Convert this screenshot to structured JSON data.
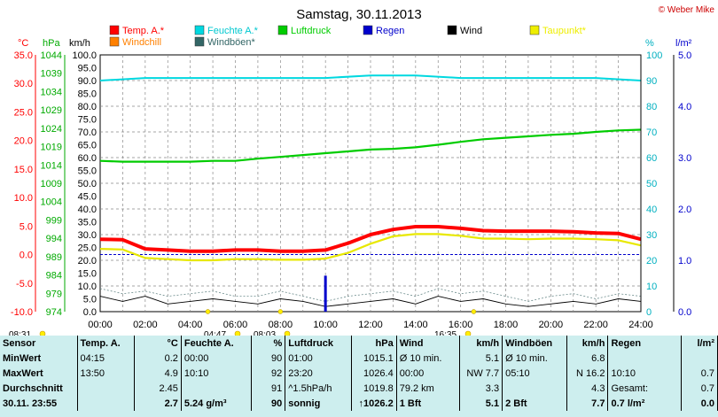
{
  "title": "Samstag, 30.11.2013",
  "copyright": "© Weber Mike",
  "colors": {
    "temp": "#ff0000",
    "humidity": "#00d8e0",
    "pressure": "#00cc00",
    "rain": "#0000cc",
    "wind": "#000000",
    "dewpoint": "#eeee00",
    "windchill": "#ff8000",
    "gusts": "#336666",
    "grid": "#888888",
    "stats_bg": "#cdeeee"
  },
  "legend": [
    {
      "label": "Temp. A.*",
      "color": "#ff0000"
    },
    {
      "label": "Feuchte A.*",
      "color": "#00d8e0"
    },
    {
      "label": "Luftdruck",
      "color": "#00cc00"
    },
    {
      "label": "Regen",
      "color": "#0000cc"
    },
    {
      "label": "Wind",
      "color": "#000000"
    },
    {
      "label": "Taupunkt*",
      "color": "#eeee00"
    },
    {
      "label": "Windchill",
      "color": "#ff8000"
    },
    {
      "label": "Windböen*",
      "color": "#336666"
    }
  ],
  "axis_units": {
    "temp": "°C",
    "pressure": "hPa",
    "wind": "km/h",
    "humidity": "%",
    "rain": "l/m²"
  },
  "chart_data": {
    "type": "line",
    "x_ticks": [
      "00:00",
      "02:00",
      "04:00",
      "06:00",
      "08:00",
      "10:00",
      "12:00",
      "14:00",
      "16:00",
      "18:00",
      "20:00",
      "22:00",
      "24:00"
    ],
    "temp_ticks": [
      "35.0",
      "30.0",
      "25.0",
      "20.0",
      "15.0",
      "10.0",
      "5.0",
      "0.0",
      "-5.0",
      "-10.0"
    ],
    "pressure_ticks": [
      "1044",
      "1039",
      "1034",
      "1029",
      "1024",
      "1019",
      "1014",
      "1009",
      "1004",
      "999",
      "994",
      "989",
      "984",
      "979",
      "974"
    ],
    "wind_ticks": [
      "100.0",
      "95.0",
      "90.0",
      "85.0",
      "80.0",
      "75.0",
      "70.0",
      "65.0",
      "60.0",
      "55.0",
      "50.0",
      "45.0",
      "40.0",
      "35.0",
      "30.0",
      "25.0",
      "20.0",
      "15.0",
      "10.0",
      "5.0",
      "0.0"
    ],
    "humidity_ticks": [
      "100",
      "90",
      "80",
      "70",
      "60",
      "50",
      "40",
      "30",
      "20",
      "10",
      "0"
    ],
    "rain_ticks": [
      "5.0",
      "4.0",
      "3.0",
      "2.0",
      "1.0",
      "0.0"
    ],
    "ylim_temp": [
      -10,
      35
    ],
    "ylim_pressure": [
      974,
      1044
    ],
    "ylim_wind": [
      0,
      100
    ],
    "ylim_humidity": [
      0,
      100
    ],
    "ylim_rain": [
      0,
      5
    ],
    "x_range_hours": [
      0,
      24
    ],
    "series": [
      {
        "name": "Temp. A.*",
        "axis": "temp",
        "x": [
          0,
          1,
          2,
          3,
          4,
          5,
          6,
          7,
          8,
          9,
          10,
          11,
          12,
          13,
          14,
          15,
          16,
          17,
          18,
          19,
          20,
          21,
          22,
          23,
          24
        ],
        "values": [
          2.7,
          2.6,
          1.0,
          0.8,
          0.6,
          0.6,
          0.8,
          0.8,
          0.6,
          0.6,
          0.8,
          2.0,
          3.5,
          4.4,
          4.9,
          4.9,
          4.6,
          4.2,
          4.1,
          4.1,
          4.1,
          4.0,
          3.8,
          3.7,
          2.7
        ]
      },
      {
        "name": "Taupunkt*",
        "axis": "temp",
        "x": [
          0,
          1,
          2,
          3,
          4,
          5,
          6,
          7,
          8,
          9,
          10,
          11,
          12,
          13,
          14,
          15,
          16,
          17,
          18,
          19,
          20,
          21,
          22,
          23,
          24
        ],
        "values": [
          1.0,
          0.9,
          -0.6,
          -0.8,
          -1.0,
          -1.0,
          -0.8,
          -0.8,
          -0.9,
          -0.9,
          -0.7,
          0.3,
          1.9,
          3.2,
          3.6,
          3.6,
          3.3,
          2.8,
          2.8,
          2.7,
          2.8,
          2.8,
          2.7,
          2.5,
          1.6
        ]
      },
      {
        "name": "Luftdruck",
        "axis": "pressure",
        "x": [
          0,
          1,
          2,
          3,
          4,
          5,
          6,
          7,
          8,
          9,
          10,
          11,
          12,
          13,
          14,
          15,
          16,
          17,
          18,
          19,
          20,
          21,
          22,
          23,
          24
        ],
        "values": [
          1015.1,
          1014.9,
          1014.9,
          1014.9,
          1014.9,
          1015.1,
          1015.1,
          1015.7,
          1016.2,
          1016.7,
          1017.2,
          1017.7,
          1018.2,
          1018.4,
          1018.8,
          1019.5,
          1020.3,
          1021.0,
          1021.4,
          1021.8,
          1022.2,
          1022.5,
          1023.0,
          1023.4,
          1023.6
        ]
      },
      {
        "name": "Feuchte A.*",
        "axis": "humidity",
        "x": [
          0,
          2,
          4,
          6,
          8,
          10,
          12,
          14,
          16,
          18,
          20,
          22,
          24
        ],
        "values": [
          90,
          91,
          91,
          91,
          91,
          91,
          92,
          92,
          91,
          91,
          91,
          91,
          90
        ]
      },
      {
        "name": "Wind",
        "axis": "wind",
        "x": [
          0,
          1,
          2,
          3,
          4,
          5,
          6,
          7,
          8,
          9,
          10,
          11,
          12,
          13,
          14,
          15,
          16,
          17,
          18,
          19,
          20,
          21,
          22,
          23,
          24
        ],
        "values": [
          6,
          4,
          6,
          3,
          4,
          5,
          4,
          3,
          5,
          4,
          2,
          3,
          4,
          5,
          3,
          6,
          4,
          5,
          3,
          2,
          3,
          4,
          3,
          5,
          4
        ]
      },
      {
        "name": "Windböen*",
        "axis": "wind",
        "x": [
          0,
          1,
          2,
          3,
          4,
          5,
          6,
          7,
          8,
          9,
          10,
          11,
          12,
          13,
          14,
          15,
          16,
          17,
          18,
          19,
          20,
          21,
          22,
          23,
          24
        ],
        "values": [
          9,
          7,
          8,
          6,
          7,
          8,
          6,
          6,
          8,
          6,
          4,
          6,
          7,
          8,
          6,
          9,
          7,
          8,
          6,
          4,
          6,
          7,
          5,
          7,
          6
        ]
      },
      {
        "name": "Regen",
        "axis": "rain",
        "type": "bar",
        "x": [
          10.0
        ],
        "values": [
          0.7
        ]
      }
    ],
    "freezing_line_temp": 0.0,
    "markers_below": [
      {
        "label": "08:31",
        "icon": "sunrise-icon"
      },
      {
        "label": "04:47",
        "icon": "moon-icon"
      },
      {
        "label": "08:03",
        "icon": "sun-icon"
      },
      {
        "label": "16:35",
        "icon": "moon-icon"
      }
    ]
  },
  "stats": {
    "header": [
      "Sensor",
      "Temp. A.",
      "°C",
      "Feuchte A.",
      "%",
      "Luftdruck",
      "hPa",
      "Wind",
      "km/h",
      "Windböen",
      "km/h",
      "Regen",
      "l/m²"
    ],
    "rows": [
      [
        "MinWert",
        "04:15",
        "0.2",
        "00:00",
        "90",
        "01:00",
        "1015.1",
        "Ø 10 min.",
        "5.1",
        "Ø 10 min.",
        "6.8",
        "",
        ""
      ],
      [
        "MaxWert",
        "13:50",
        "4.9",
        "10:10",
        "92",
        "23:20",
        "1026.4",
        "00:00",
        "NW 7.7",
        "05:10",
        "N 16.2",
        "10:10",
        "0.7"
      ],
      [
        "Durchschnitt",
        "",
        "2.45",
        "",
        "91",
        "^1.5hPa/h",
        "1019.8",
        "79.2 km",
        "3.3",
        "",
        "4.3",
        "Gesamt:",
        "0.7"
      ],
      [
        "30.11. 23:55",
        "",
        "2.7",
        "5.24 g/m³",
        "90",
        "sonnig",
        "↑1026.2",
        "1 Bft",
        "5.1",
        "2 Bft",
        "7.7",
        "0.7 l/m²",
        "0.0"
      ]
    ]
  }
}
